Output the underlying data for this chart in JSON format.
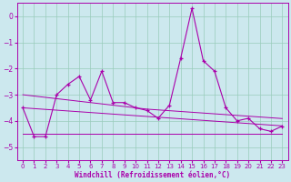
{
  "x": [
    0,
    1,
    2,
    3,
    4,
    5,
    6,
    7,
    8,
    9,
    10,
    11,
    12,
    13,
    14,
    15,
    16,
    17,
    18,
    19,
    20,
    21,
    22,
    23
  ],
  "main_line": [
    -3.5,
    -4.6,
    -4.6,
    -3.0,
    -2.6,
    -2.3,
    -3.2,
    -2.1,
    -3.3,
    -3.3,
    -3.5,
    -3.6,
    -3.9,
    -3.4,
    -1.6,
    0.3,
    -1.7,
    -2.1,
    -3.5,
    -4.0,
    -3.9,
    -4.3,
    -4.4,
    -4.2
  ],
  "reg_upper": [
    -3.0,
    -3.05,
    -3.1,
    -3.15,
    -3.2,
    -3.25,
    -3.3,
    -3.35,
    -3.4,
    -3.45,
    -3.5,
    -3.55,
    -3.58,
    -3.61,
    -3.64,
    -3.67,
    -3.7,
    -3.73,
    -3.76,
    -3.79,
    -3.82,
    -3.85,
    -3.88,
    -3.91
  ],
  "reg_mid": [
    -3.5,
    -3.53,
    -3.56,
    -3.59,
    -3.62,
    -3.65,
    -3.68,
    -3.71,
    -3.74,
    -3.77,
    -3.8,
    -3.83,
    -3.86,
    -3.89,
    -3.92,
    -3.95,
    -3.98,
    -4.01,
    -4.04,
    -4.07,
    -4.1,
    -4.13,
    -4.16,
    -4.19
  ],
  "reg_lower": [
    -4.5,
    -4.5,
    -4.5,
    -4.5,
    -4.5,
    -4.5,
    -4.5,
    -4.5,
    -4.5,
    -4.5,
    -4.5,
    -4.5,
    -4.5,
    -4.5,
    -4.5,
    -4.5,
    -4.5,
    -4.5,
    -4.5,
    -4.5,
    -4.5,
    -4.5,
    -4.5,
    -4.5
  ],
  "line_color": "#aa00aa",
  "bg_color": "#cce8ee",
  "grid_color": "#99ccbb",
  "xlabel": "Windchill (Refroidissement éolien,°C)",
  "xlim": [
    -0.5,
    23.5
  ],
  "ylim": [
    -5.5,
    0.5
  ],
  "yticks": [
    0,
    -1,
    -2,
    -3,
    -4,
    -5
  ],
  "xticks": [
    0,
    1,
    2,
    3,
    4,
    5,
    6,
    7,
    8,
    9,
    10,
    11,
    12,
    13,
    14,
    15,
    16,
    17,
    18,
    19,
    20,
    21,
    22,
    23
  ],
  "tick_fontsize": 5.0,
  "xlabel_fontsize": 5.5
}
